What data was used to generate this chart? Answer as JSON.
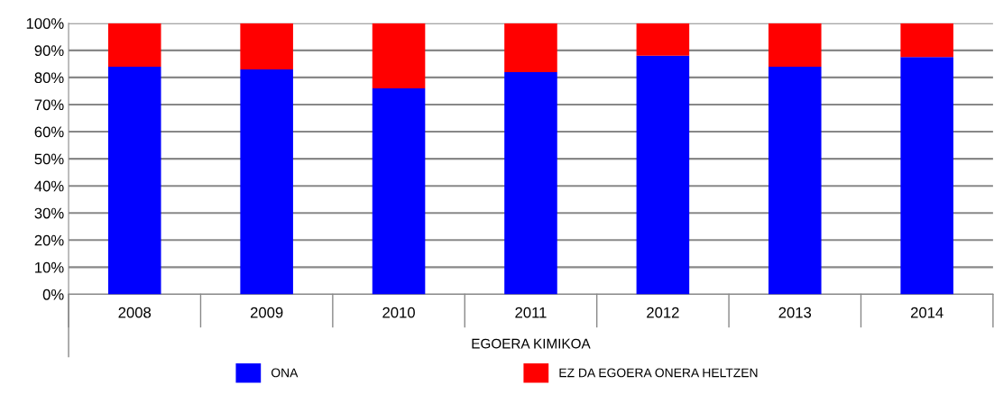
{
  "chart_data": {
    "type": "bar",
    "stacked": true,
    "xlabel": "EGOERA KIMIKOA",
    "categories": [
      "2008",
      "2009",
      "2010",
      "2011",
      "2012",
      "2013",
      "2014"
    ],
    "series": [
      {
        "name": "ONA",
        "color": "#0000ff",
        "values": [
          84,
          83,
          76,
          82,
          88,
          84,
          87.5
        ]
      },
      {
        "name": "EZ DA EGOERA ONERA HELTZEN",
        "color": "#ff0000",
        "values": [
          16,
          17,
          24,
          18,
          12,
          16,
          12.5
        ]
      }
    ],
    "ylim": [
      0,
      100
    ],
    "yticks": [
      {
        "value": 0,
        "label": "0%"
      },
      {
        "value": 10,
        "label": "10%"
      },
      {
        "value": 20,
        "label": "20%"
      },
      {
        "value": 30,
        "label": "30%"
      },
      {
        "value": 40,
        "label": "40%"
      },
      {
        "value": 50,
        "label": "50%"
      },
      {
        "value": 60,
        "label": "60%"
      },
      {
        "value": 70,
        "label": "70%"
      },
      {
        "value": 80,
        "label": "80%"
      },
      {
        "value": 90,
        "label": "90%"
      },
      {
        "value": 100,
        "label": "100%"
      }
    ],
    "grid": "y",
    "legend": "bottom"
  }
}
